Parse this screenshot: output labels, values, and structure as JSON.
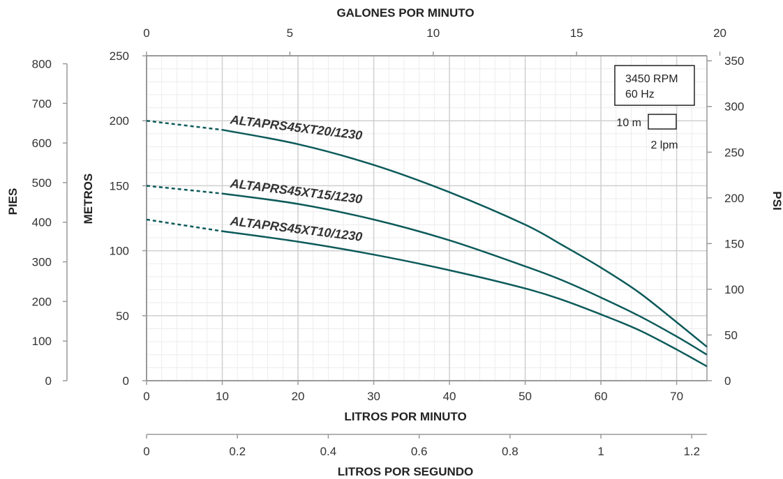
{
  "chart_data": {
    "type": "line",
    "title": "",
    "x": {
      "label": "LITROS POR MINUTO",
      "range": [
        0,
        74
      ],
      "ticks": [
        0,
        10,
        20,
        30,
        40,
        50,
        60,
        70
      ]
    },
    "x_top": {
      "label": "GALONES POR MINUTO",
      "unit_factor": 0.26417,
      "ticks": [
        0,
        5,
        10,
        15,
        20
      ]
    },
    "x_bottom2": {
      "label": "LITROS POR SEGUNDO",
      "unit_factor": 0.016667,
      "ticks": [
        0,
        0.2,
        0.4,
        0.6,
        0.8,
        1,
        1.2
      ]
    },
    "y": {
      "label": "METROS",
      "range": [
        0,
        250
      ],
      "ticks": [
        0,
        50,
        100,
        150,
        200,
        250
      ]
    },
    "y_left2": {
      "label": "PIES",
      "unit_factor": 3.2808,
      "ticks": [
        0,
        100,
        200,
        300,
        400,
        500,
        600,
        700,
        800
      ]
    },
    "y_right": {
      "label": "PSI",
      "unit_factor": 1.4219,
      "ticks": [
        0,
        50,
        100,
        150,
        200,
        250,
        300,
        350
      ]
    },
    "grid": true,
    "legend_box": {
      "lines": [
        "3450 RPM",
        "60 Hz"
      ],
      "scale_vertical": "10 m",
      "scale_horizontal": "2 lpm"
    },
    "series": [
      {
        "name": "ALTAPRS45XT20/1230",
        "dashed_until": 10,
        "points": [
          [
            0,
            200
          ],
          [
            10,
            193
          ],
          [
            20,
            182
          ],
          [
            30,
            166
          ],
          [
            40,
            145
          ],
          [
            50,
            120
          ],
          [
            55,
            104
          ],
          [
            60,
            87
          ],
          [
            65,
            68
          ],
          [
            70,
            45
          ],
          [
            74,
            26
          ]
        ]
      },
      {
        "name": "ALTAPRS45XT15/1230",
        "dashed_until": 10,
        "points": [
          [
            0,
            150
          ],
          [
            10,
            144
          ],
          [
            20,
            136
          ],
          [
            30,
            124
          ],
          [
            40,
            108
          ],
          [
            50,
            88
          ],
          [
            55,
            77
          ],
          [
            60,
            64
          ],
          [
            65,
            50
          ],
          [
            70,
            34
          ],
          [
            74,
            20
          ]
        ]
      },
      {
        "name": "ALTAPRS45XT10/1230",
        "dashed_until": 10,
        "points": [
          [
            0,
            124
          ],
          [
            10,
            115
          ],
          [
            20,
            107
          ],
          [
            30,
            97
          ],
          [
            40,
            85
          ],
          [
            50,
            71
          ],
          [
            55,
            62
          ],
          [
            60,
            51
          ],
          [
            65,
            39
          ],
          [
            70,
            24
          ],
          [
            74,
            11
          ]
        ]
      }
    ],
    "colors": {
      "curve": "#0d5a5a",
      "grid_major": "#cfcfcf",
      "grid_minor": "#ececec",
      "axis": "#999999"
    }
  }
}
